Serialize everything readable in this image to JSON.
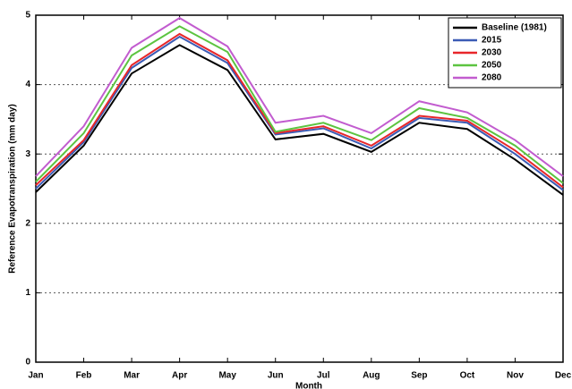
{
  "chart_data": {
    "type": "line",
    "x_label": "Month",
    "y_label": "Reference Evapotranspiration (mm day)",
    "categories": [
      "Jan",
      "Feb",
      "Mar",
      "Apr",
      "May",
      "Jun",
      "Jul",
      "Aug",
      "Sep",
      "Oct",
      "Nov",
      "Dec"
    ],
    "series": [
      {
        "name": "Baseline (1981)",
        "color": "#000000",
        "values": [
          2.45,
          3.12,
          4.16,
          4.57,
          4.21,
          3.21,
          3.29,
          3.03,
          3.45,
          3.36,
          2.92,
          2.41
        ]
      },
      {
        "name": "2015",
        "color": "#3b5bb5",
        "values": [
          2.5,
          3.17,
          4.24,
          4.69,
          4.31,
          3.28,
          3.37,
          3.08,
          3.52,
          3.45,
          3.0,
          2.48
        ]
      },
      {
        "name": "2030",
        "color": "#e8262a",
        "values": [
          2.55,
          3.2,
          4.28,
          4.73,
          4.35,
          3.3,
          3.4,
          3.12,
          3.55,
          3.48,
          3.05,
          2.52
        ]
      },
      {
        "name": "2050",
        "color": "#5cc440",
        "values": [
          2.6,
          3.3,
          4.42,
          4.84,
          4.47,
          3.32,
          3.45,
          3.2,
          3.66,
          3.52,
          3.12,
          2.58
        ]
      },
      {
        "name": "2080",
        "color": "#c25ccf",
        "values": [
          2.68,
          3.4,
          4.53,
          4.96,
          4.55,
          3.45,
          3.55,
          3.3,
          3.76,
          3.6,
          3.2,
          2.68
        ]
      }
    ],
    "ylim": [
      0,
      5
    ],
    "yticks": [
      0,
      1,
      2,
      3,
      4,
      5
    ],
    "grid": true,
    "legend": "top-right"
  }
}
